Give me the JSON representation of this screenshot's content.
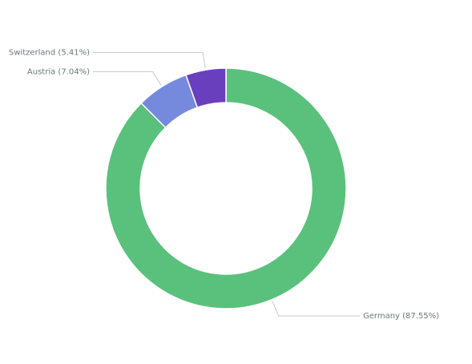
{
  "chart_data": {
    "type": "donut",
    "categories": [
      "Germany",
      "Austria",
      "Switzerland"
    ],
    "values": [
      87.55,
      7.04,
      5.41
    ],
    "value_labels": [
      "Germany (87.55%)",
      "Austria (7.04%)",
      "Switzerland (5.41%)"
    ],
    "colors": [
      "#5ac17c",
      "#7589dd",
      "#6a3fbe"
    ]
  }
}
